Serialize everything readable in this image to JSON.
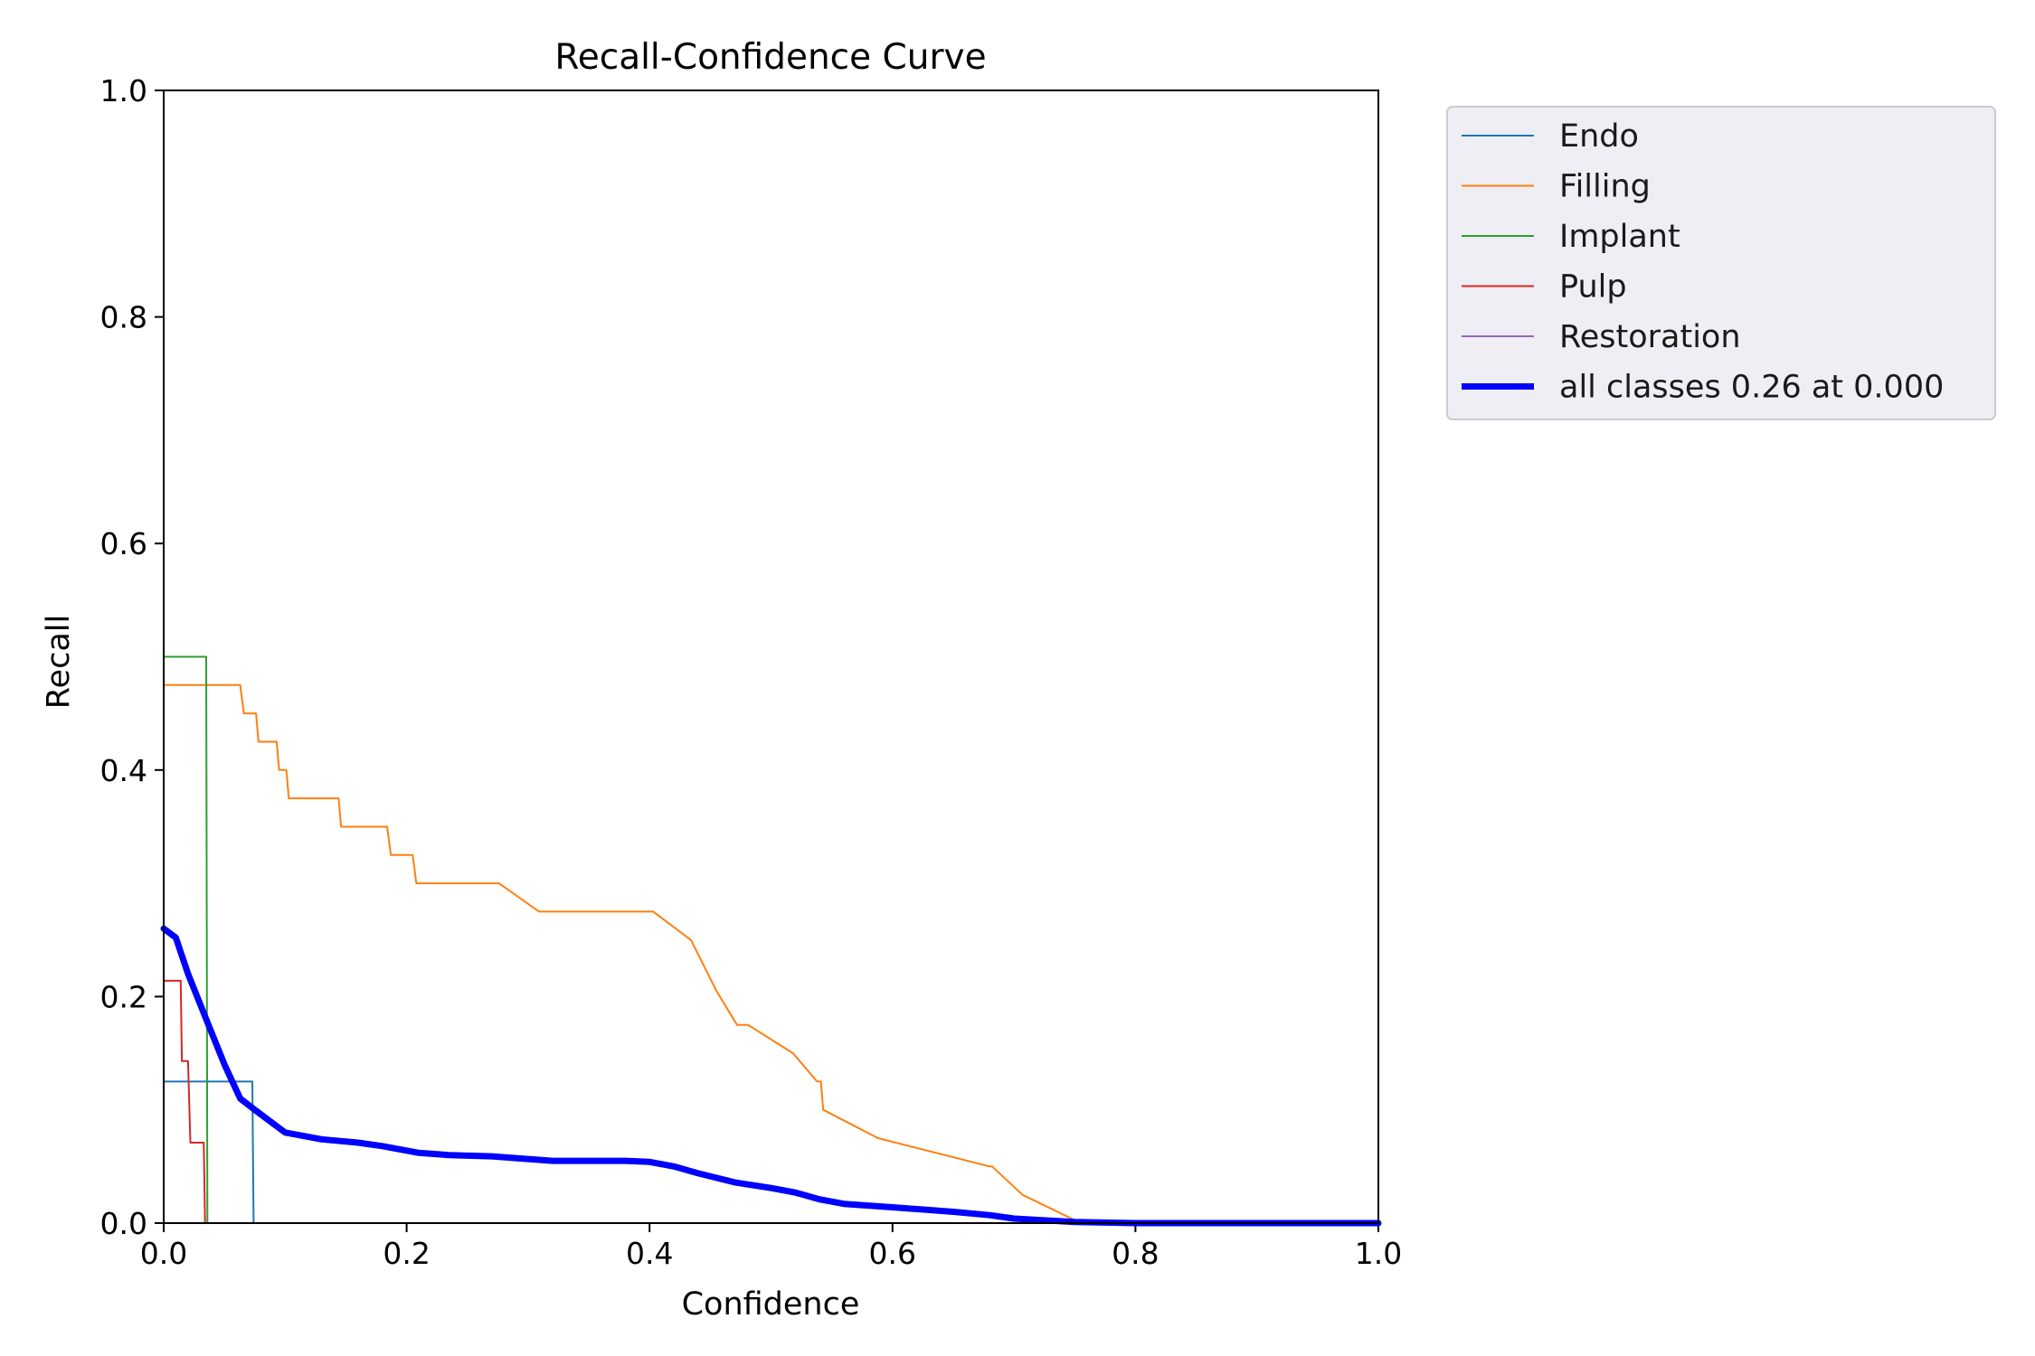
{
  "chart_data": {
    "type": "line",
    "title": "Recall-Confidence Curve",
    "xlabel": "Confidence",
    "ylabel": "Recall",
    "xlim": [
      0,
      1
    ],
    "ylim": [
      0,
      1
    ],
    "xticks": [
      0.0,
      0.2,
      0.4,
      0.6,
      0.8,
      1.0
    ],
    "yticks": [
      0.0,
      0.2,
      0.4,
      0.6,
      0.8,
      1.0
    ],
    "tick_labels": [
      "0.0",
      "0.2",
      "0.4",
      "0.6",
      "0.8",
      "1.0"
    ],
    "grid": false,
    "legend": "outside-top-right",
    "series": [
      {
        "name": "Endo",
        "color": "#1f77b4",
        "width": 2,
        "x": [
          0.0,
          0.073,
          0.073,
          0.074,
          1.0
        ],
        "y": [
          0.125,
          0.125,
          0.125,
          0.0,
          0.0
        ]
      },
      {
        "name": "Filling",
        "color": "#ff7f0e",
        "width": 2,
        "x": [
          0.0,
          0.063,
          0.066,
          0.076,
          0.078,
          0.093,
          0.095,
          0.101,
          0.103,
          0.144,
          0.146,
          0.184,
          0.187,
          0.205,
          0.208,
          0.276,
          0.309,
          0.403,
          0.434,
          0.455,
          0.472,
          0.481,
          0.518,
          0.538,
          0.541,
          0.543,
          0.588,
          0.68,
          0.682,
          0.707,
          0.755,
          0.78,
          1.0
        ],
        "y": [
          0.475,
          0.475,
          0.45,
          0.45,
          0.425,
          0.425,
          0.4,
          0.4,
          0.375,
          0.375,
          0.35,
          0.35,
          0.325,
          0.325,
          0.3,
          0.3,
          0.275,
          0.275,
          0.25,
          0.205,
          0.175,
          0.175,
          0.15,
          0.125,
          0.125,
          0.1,
          0.075,
          0.05,
          0.05,
          0.025,
          0.0,
          0.0,
          0.0
        ]
      },
      {
        "name": "Implant",
        "color": "#2ca02c",
        "width": 2,
        "x": [
          0.0,
          0.035,
          0.036,
          1.0
        ],
        "y": [
          0.5,
          0.5,
          0.0,
          0.0
        ]
      },
      {
        "name": "Pulp",
        "color": "#d62728",
        "width": 2,
        "x": [
          0.0,
          0.014,
          0.015,
          0.02,
          0.022,
          0.033,
          0.034,
          1.0
        ],
        "y": [
          0.214,
          0.214,
          0.143,
          0.143,
          0.071,
          0.071,
          0.0,
          0.0
        ]
      },
      {
        "name": "Restoration",
        "color": "#9467bd",
        "width": 2,
        "x": [
          0.0,
          1.0
        ],
        "y": [
          0.0,
          0.0
        ]
      },
      {
        "name": "all classes 0.26 at 0.000",
        "color": "#0000ff",
        "width": 7,
        "x": [
          0.0,
          0.01,
          0.02,
          0.035,
          0.05,
          0.063,
          0.075,
          0.1,
          0.13,
          0.16,
          0.18,
          0.21,
          0.235,
          0.27,
          0.32,
          0.38,
          0.4,
          0.42,
          0.44,
          0.47,
          0.5,
          0.52,
          0.54,
          0.56,
          0.6,
          0.65,
          0.68,
          0.7,
          0.75,
          0.8,
          1.0
        ],
        "y": [
          0.26,
          0.252,
          0.22,
          0.18,
          0.14,
          0.11,
          0.1,
          0.08,
          0.074,
          0.071,
          0.068,
          0.062,
          0.06,
          0.059,
          0.055,
          0.055,
          0.054,
          0.05,
          0.044,
          0.036,
          0.031,
          0.027,
          0.021,
          0.017,
          0.014,
          0.01,
          0.007,
          0.004,
          0.001,
          0.0,
          0.0
        ]
      }
    ]
  }
}
